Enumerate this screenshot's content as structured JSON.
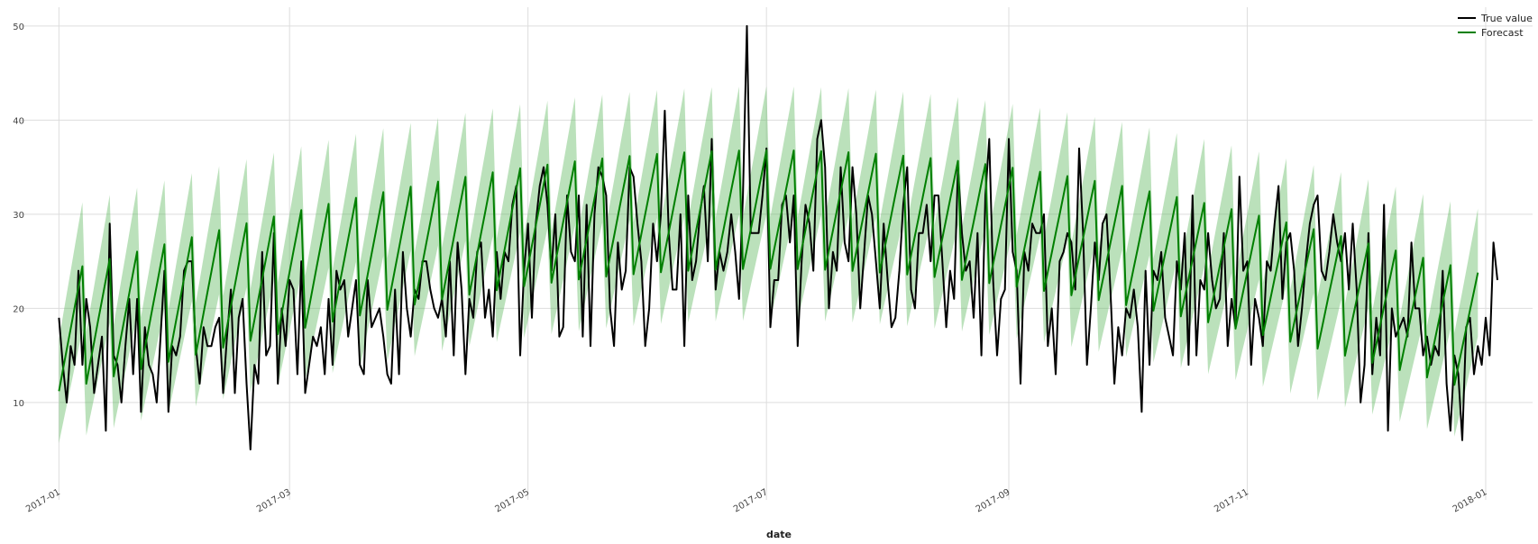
{
  "chart_data": {
    "type": "line",
    "xlabel": "date",
    "ylabel": "",
    "x_start": "2017-01-01",
    "x_end": "2017-12-31",
    "xlim": [
      "2016-12-22",
      "2018-01-13"
    ],
    "ylim": [
      3,
      52
    ],
    "yticks": [
      10,
      20,
      30,
      40,
      50
    ],
    "xticks": [
      {
        "date": "2017-01-01",
        "label": "2017-01"
      },
      {
        "date": "2017-03-01",
        "label": "2017-03"
      },
      {
        "date": "2017-05-01",
        "label": "2017-05"
      },
      {
        "date": "2017-07-01",
        "label": "2017-07"
      },
      {
        "date": "2017-09-01",
        "label": "2017-09"
      },
      {
        "date": "2017-11-01",
        "label": "2017-11"
      },
      {
        "date": "2018-01-01",
        "label": "2018-01"
      }
    ],
    "grid": true,
    "legend_position": "top-right",
    "series": [
      {
        "name": "True value",
        "color": "#000000",
        "values": [
          19,
          14,
          10,
          16,
          14,
          24,
          14,
          21,
          18,
          11,
          14,
          17,
          7,
          29,
          15,
          14,
          10,
          16,
          21,
          13,
          21,
          9,
          18,
          14,
          13,
          10,
          17,
          24,
          9,
          16,
          15,
          17,
          24,
          25,
          25,
          16,
          12,
          18,
          16,
          16,
          18,
          19,
          11,
          17,
          22,
          11,
          19,
          21,
          12,
          5,
          14,
          12,
          26,
          15,
          16,
          28,
          12,
          20,
          16,
          23,
          22,
          13,
          25,
          11,
          14,
          17,
          16,
          18,
          13,
          21,
          14,
          24,
          22,
          23,
          17,
          20,
          23,
          14,
          13,
          23,
          18,
          19,
          20,
          17,
          13,
          12,
          22,
          13,
          26,
          20,
          17,
          22,
          21,
          25,
          25,
          22,
          20,
          19,
          21,
          17,
          25,
          15,
          27,
          22,
          13,
          21,
          19,
          26,
          27,
          19,
          22,
          17,
          26,
          21,
          26,
          25,
          31,
          33,
          15,
          24,
          29,
          19,
          29,
          33,
          35,
          31,
          24,
          30,
          17,
          18,
          32,
          26,
          25,
          32,
          17,
          31,
          16,
          30,
          35,
          34,
          32,
          20,
          16,
          27,
          22,
          24,
          35,
          34,
          29,
          25,
          16,
          20,
          29,
          25,
          30,
          41,
          28,
          22,
          22,
          30,
          16,
          32,
          23,
          25,
          30,
          33,
          25,
          38,
          22,
          26,
          24,
          26,
          30,
          26,
          21,
          32,
          50,
          28,
          28,
          28,
          32,
          37,
          18,
          23,
          23,
          31,
          32,
          27,
          32,
          16,
          25,
          31,
          29,
          24,
          38,
          40,
          35,
          20,
          26,
          24,
          35,
          27,
          25,
          35,
          30,
          20,
          26,
          32,
          30,
          25,
          20,
          29,
          23,
          18,
          19,
          24,
          31,
          35,
          22,
          20,
          28,
          28,
          31,
          25,
          32,
          32,
          25,
          18,
          24,
          21,
          35,
          28,
          24,
          25,
          19,
          28,
          15,
          32,
          38,
          23,
          15,
          21,
          22,
          38,
          26,
          24,
          12,
          26,
          24,
          29,
          28,
          28,
          30,
          16,
          20,
          13,
          25,
          26,
          28,
          27,
          22,
          37,
          28,
          14,
          20,
          27,
          23,
          29,
          30,
          22,
          12,
          18,
          15,
          20,
          19,
          22,
          18,
          9,
          24,
          14,
          24,
          23,
          26,
          19,
          17,
          15,
          25,
          22,
          28,
          14,
          32,
          15,
          23,
          22,
          28,
          23,
          20,
          21,
          28,
          16,
          21,
          18,
          34,
          24,
          25,
          14,
          21,
          19,
          16,
          25,
          24,
          29,
          33,
          21,
          27,
          28,
          24,
          16,
          20,
          25,
          29,
          31,
          32,
          24,
          23,
          26,
          30,
          27,
          25,
          28,
          22,
          29,
          22,
          10,
          14,
          28,
          13,
          19,
          15,
          31,
          7,
          20,
          17,
          18,
          19,
          17,
          27,
          20,
          20,
          15,
          17,
          14,
          16,
          15,
          24,
          12,
          7,
          15,
          13,
          6,
          18,
          19,
          13,
          16,
          14,
          19,
          15,
          27,
          23
        ]
      },
      {
        "name": "Forecast",
        "color": "#007f00",
        "band_color": "#5cb85c",
        "periods": 364
      }
    ]
  }
}
